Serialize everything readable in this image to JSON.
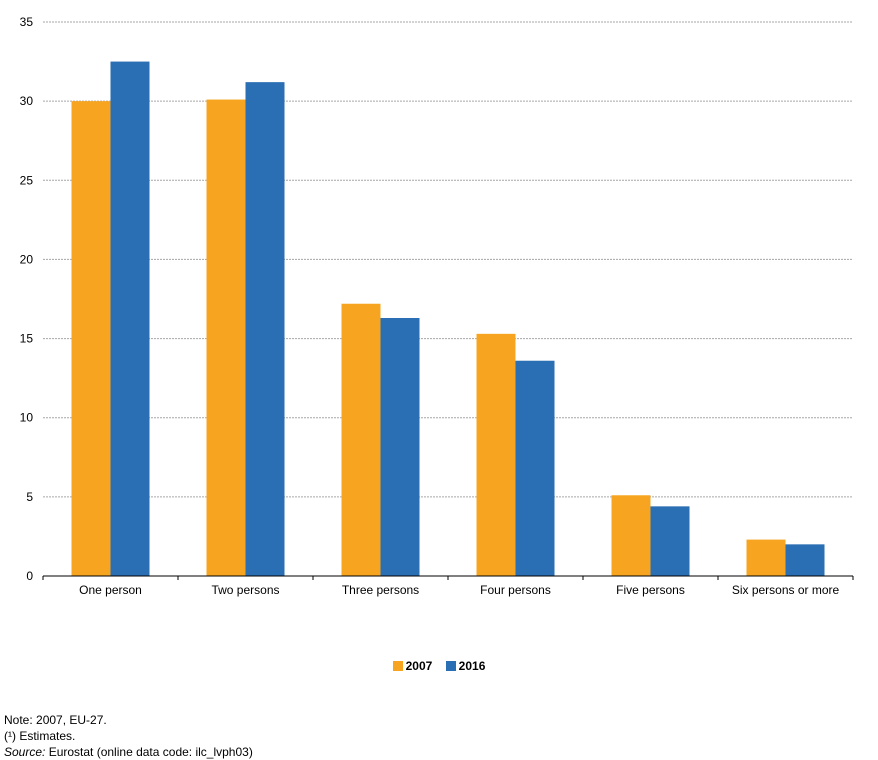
{
  "chart_data": {
    "type": "bar",
    "categories": [
      "One person",
      "Two persons",
      "Three persons",
      "Four persons",
      "Five persons",
      "Six persons or more"
    ],
    "series": [
      {
        "name": "2007",
        "color": "#F7A520",
        "values": [
          30.0,
          30.1,
          17.2,
          15.3,
          5.1,
          2.3
        ]
      },
      {
        "name": "2016",
        "color": "#2A6EB3",
        "values": [
          32.5,
          31.2,
          16.3,
          13.6,
          4.4,
          2.0
        ]
      }
    ],
    "title": "",
    "xlabel": "",
    "ylabel": "",
    "ylim": [
      0,
      35
    ],
    "yticks": [
      0,
      5,
      10,
      15,
      20,
      25,
      30,
      35
    ],
    "grid": true,
    "legend_position": "bottom-center"
  },
  "notes": {
    "note": "Note: 2007, EU-27.",
    "estimates": "(¹) Estimates.",
    "source_label": "Source:",
    "source_text": " Eurostat (online data code: ilc_lvph03)"
  }
}
